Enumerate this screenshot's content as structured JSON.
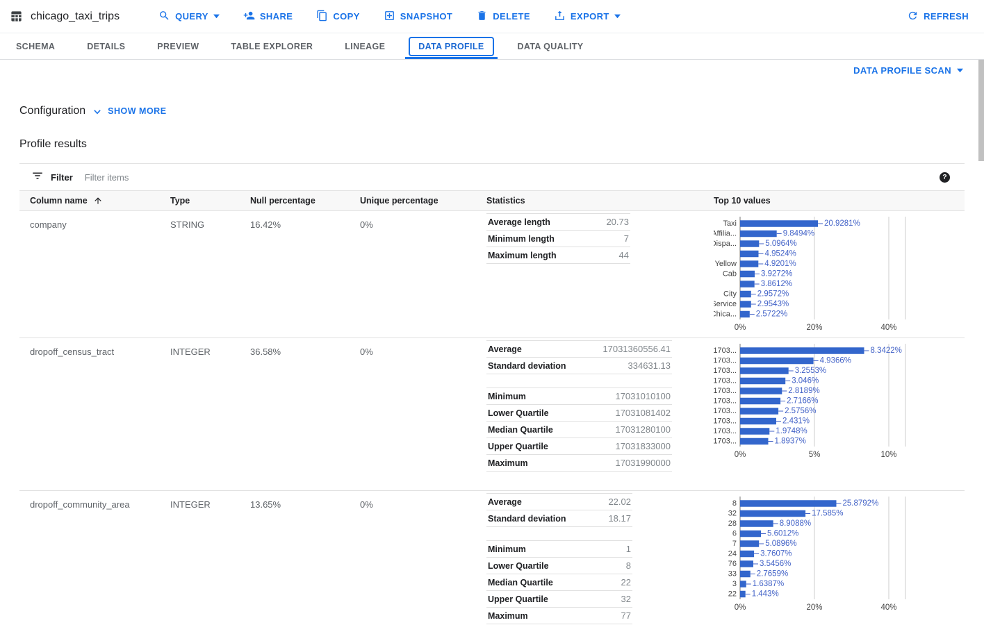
{
  "toolbar": {
    "title": "chicago_taxi_trips",
    "table_icon": "table-icon",
    "buttons": [
      {
        "label": "QUERY",
        "icon": "search-icon",
        "caret": true
      },
      {
        "label": "SHARE",
        "icon": "person-add-icon",
        "caret": false
      },
      {
        "label": "COPY",
        "icon": "copy-icon",
        "caret": false
      },
      {
        "label": "SNAPSHOT",
        "icon": "snapshot-icon",
        "caret": false
      },
      {
        "label": "DELETE",
        "icon": "delete-icon",
        "caret": false
      },
      {
        "label": "EXPORT",
        "icon": "export-icon",
        "caret": true
      }
    ],
    "refresh_label": "REFRESH",
    "refresh_icon": "refresh-icon"
  },
  "tabs": [
    {
      "label": "SCHEMA",
      "active": false
    },
    {
      "label": "DETAILS",
      "active": false
    },
    {
      "label": "PREVIEW",
      "active": false
    },
    {
      "label": "TABLE EXPLORER",
      "active": false
    },
    {
      "label": "LINEAGE",
      "active": false
    },
    {
      "label": "DATA PROFILE",
      "active": true
    },
    {
      "label": "DATA QUALITY",
      "active": false
    }
  ],
  "profile": {
    "scan_button": "DATA PROFILE SCAN",
    "configuration_label": "Configuration",
    "show_more_label": "SHOW MORE",
    "results_title": "Profile results",
    "filter_label": "Filter",
    "filter_placeholder": "Filter items",
    "help_glyph": "?"
  },
  "table": {
    "headers": [
      "Column name",
      "Type",
      "Null percentage",
      "Unique percentage",
      "Statistics",
      "Top 10 values"
    ],
    "rows": [
      {
        "name": "company",
        "type": "STRING",
        "null_percentage": "16.42%",
        "unique_percentage": "0%",
        "stats_width": 207,
        "stats_groups": [
          [
            {
              "label": "Average length",
              "value": "20.73"
            },
            {
              "label": "Minimum length",
              "value": "7"
            },
            {
              "label": "Maximum length",
              "value": "44"
            }
          ]
        ],
        "chart_index": 0
      },
      {
        "name": "dropoff_census_tract",
        "type": "INTEGER",
        "null_percentage": "36.58%",
        "unique_percentage": "0%",
        "stats_width": 267,
        "stats_groups": [
          [
            {
              "label": "Average",
              "value": "17031360556.41"
            },
            {
              "label": "Standard deviation",
              "value": "334631.13"
            }
          ],
          [
            {
              "label": "Minimum",
              "value": "17031010100"
            },
            {
              "label": "Lower Quartile",
              "value": "17031081402"
            },
            {
              "label": "Median Quartile",
              "value": "17031280100"
            },
            {
              "label": "Upper Quartile",
              "value": "17031833000"
            },
            {
              "label": "Maximum",
              "value": "17031990000"
            }
          ]
        ],
        "chart_index": 1
      },
      {
        "name": "dropoff_community_area",
        "type": "INTEGER",
        "null_percentage": "13.65%",
        "unique_percentage": "0%",
        "stats_width": 210,
        "stats_groups": [
          [
            {
              "label": "Average",
              "value": "22.02"
            },
            {
              "label": "Standard deviation",
              "value": "18.17"
            }
          ],
          [
            {
              "label": "Minimum",
              "value": "1"
            },
            {
              "label": "Lower Quartile",
              "value": "8"
            },
            {
              "label": "Median Quartile",
              "value": "22"
            },
            {
              "label": "Upper Quartile",
              "value": "32"
            },
            {
              "label": "Maximum",
              "value": "77"
            }
          ]
        ],
        "chart_index": 2
      }
    ]
  },
  "chart_data": [
    {
      "type": "bar",
      "orientation": "horizontal",
      "title": "Top 10 values — company",
      "categories": [
        "Taxi",
        "Affilia...",
        "Dispa...",
        "",
        "Yellow",
        "Cab",
        "",
        "City",
        "Service",
        "Chica..."
      ],
      "values": [
        20.9281,
        9.8494,
        5.0964,
        4.9524,
        4.9201,
        3.9272,
        3.8612,
        2.9572,
        2.9543,
        2.5722
      ],
      "value_suffix": "%",
      "x_tick_labels": [
        "0%",
        "20%",
        "40%"
      ],
      "x_tick_values": [
        0,
        20,
        40
      ],
      "xlim": [
        0,
        44.5
      ],
      "grid": true,
      "bar_color": "#3366cc",
      "annotation_color": "#4262c7"
    },
    {
      "type": "bar",
      "orientation": "horizontal",
      "title": "Top 10 values — dropoff_census_tract",
      "categories": [
        "1703...",
        "1703...",
        "1703...",
        "1703...",
        "1703...",
        "1703...",
        "1703...",
        "1703...",
        "1703...",
        "1703..."
      ],
      "values": [
        8.3422,
        4.9366,
        3.2553,
        3.046,
        2.8189,
        2.7166,
        2.5756,
        2.431,
        1.9748,
        1.8937
      ],
      "value_suffix": "%",
      "x_tick_labels": [
        "0%",
        "5%",
        "10%"
      ],
      "x_tick_values": [
        0,
        5,
        10
      ],
      "xlim": [
        0,
        11.1
      ],
      "grid": true,
      "bar_color": "#3366cc",
      "annotation_color": "#4262c7"
    },
    {
      "type": "bar",
      "orientation": "horizontal",
      "title": "Top 10 values — dropoff_community_area",
      "categories": [
        "8",
        "32",
        "28",
        "6",
        "7",
        "24",
        "76",
        "33",
        "3",
        "22"
      ],
      "values": [
        25.8792,
        17.585,
        8.9088,
        5.6012,
        5.0896,
        3.7607,
        3.5456,
        2.7659,
        1.6387,
        1.443
      ],
      "value_suffix": "%",
      "x_tick_labels": [
        "0%",
        "20%",
        "40%"
      ],
      "x_tick_values": [
        0,
        20,
        40
      ],
      "xlim": [
        0,
        44.5
      ],
      "grid": true,
      "bar_color": "#3366cc",
      "annotation_color": "#4262c7"
    }
  ]
}
